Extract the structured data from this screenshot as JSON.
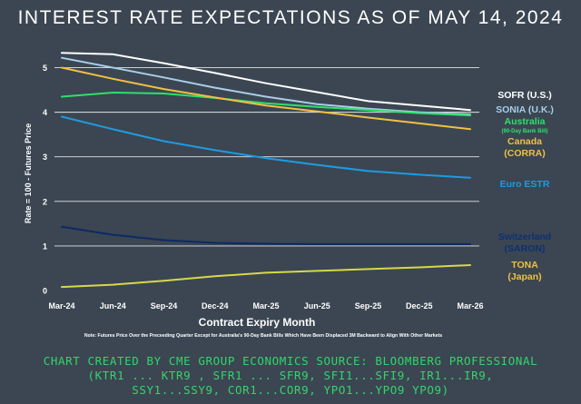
{
  "chart_data": {
    "type": "line",
    "title": "INTEREST RATE EXPECTATIONS AS OF MAY 14, 2024",
    "xlabel": "Contract Expiry Month",
    "ylabel": "Rate = 100 - Futures Price",
    "ylim": [
      0,
      5.5
    ],
    "yticks": [
      0,
      1,
      2,
      3,
      4,
      5
    ],
    "grid": true,
    "categories": [
      "Mar-24",
      "Jun-24",
      "Sep-24",
      "Dec-24",
      "Mar-25",
      "Jun-25",
      "Sep-25",
      "Dec-25",
      "Mar-26"
    ],
    "series": [
      {
        "name": "SOFR (U.S.)",
        "label_lines": [
          "SOFR (U.S.)"
        ],
        "color": "#ffffff",
        "label_color": "#ffffff",
        "x": [
          0,
          1,
          2,
          3,
          4,
          5,
          6,
          7,
          8
        ],
        "values": [
          5.33,
          5.3,
          5.1,
          4.88,
          4.65,
          4.45,
          4.25,
          4.15,
          4.05
        ]
      },
      {
        "name": "SONIA (U.K.)",
        "label_lines": [
          "SONIA (U.K.)"
        ],
        "color": "#a8cde8",
        "label_color": "#a8cde8",
        "x": [
          0,
          1,
          2,
          3,
          4,
          5,
          6,
          7,
          8
        ],
        "values": [
          5.22,
          5.0,
          4.78,
          4.55,
          4.35,
          4.18,
          4.08,
          4.0,
          3.95
        ]
      },
      {
        "name": "Australia",
        "label_lines": [
          "Australia",
          "(90-Day Bank Bill)"
        ],
        "color": "#2ee06a",
        "label_color": "#2ee06a",
        "x": [
          0,
          1,
          2,
          3,
          4,
          5,
          6,
          7,
          8
        ],
        "values": [
          4.35,
          4.44,
          4.42,
          4.32,
          4.2,
          4.12,
          4.05,
          3.98,
          3.93
        ]
      },
      {
        "name": "Canada (CORRA)",
        "label_lines": [
          "Canada",
          "(CORRA)"
        ],
        "color": "#f0c040",
        "label_color": "#f0c040",
        "x": [
          0,
          1,
          2,
          3,
          4,
          5,
          6,
          7,
          8
        ],
        "values": [
          5.0,
          4.75,
          4.52,
          4.33,
          4.15,
          4.02,
          3.88,
          3.75,
          3.62
        ]
      },
      {
        "name": "Euro ESTR",
        "label_lines": [
          "Euro ESTR"
        ],
        "color": "#1e9be0",
        "label_color": "#1e9be0",
        "x": [
          0,
          1,
          2,
          3,
          4,
          5,
          6,
          7,
          8
        ],
        "values": [
          3.9,
          3.62,
          3.35,
          3.15,
          2.97,
          2.82,
          2.68,
          2.6,
          2.53
        ]
      },
      {
        "name": "Switzerland (SARON)",
        "label_lines": [
          "Switzerland",
          "(SARON)"
        ],
        "color": "#0b2a66",
        "label_color": "#0e2f73",
        "x": [
          0,
          1,
          2,
          3,
          4,
          5,
          6,
          7,
          8
        ],
        "values": [
          1.43,
          1.25,
          1.13,
          1.07,
          1.05,
          1.04,
          1.04,
          1.04,
          1.04
        ]
      },
      {
        "name": "TONA (Japan)",
        "label_lines": [
          "TONA",
          "(Japan)"
        ],
        "color": "#d8d846",
        "label_color": "#f0c040",
        "x": [
          0,
          1,
          2,
          3,
          4,
          5,
          6,
          7,
          8
        ],
        "values": [
          0.08,
          0.13,
          0.22,
          0.32,
          0.4,
          0.44,
          0.48,
          0.52,
          0.57
        ]
      }
    ]
  },
  "footnote": "Note: Futures Price Over the Preceeding Quarter Except for Australia's 90-Day Bank Bills Which Have Been Displaced 3M Backward to Align With Other Markets",
  "footer": {
    "line1": "CHART CREATED BY CME GROUP ECONOMICS  SOURCE: BLOOMBERG PROFESSIONAL",
    "line2": "(KTR1 ... KTR9 , SFR1 ... SFR9, SFI1...SFI9, IR1...IR9,",
    "line3": "SSY1...SSY9, COR1...COR9, YPO1...YPO9 YPO9)"
  },
  "colors": {
    "background": "#3b4652",
    "gridline": "#ffffff",
    "footer_text": "#34d46a"
  }
}
